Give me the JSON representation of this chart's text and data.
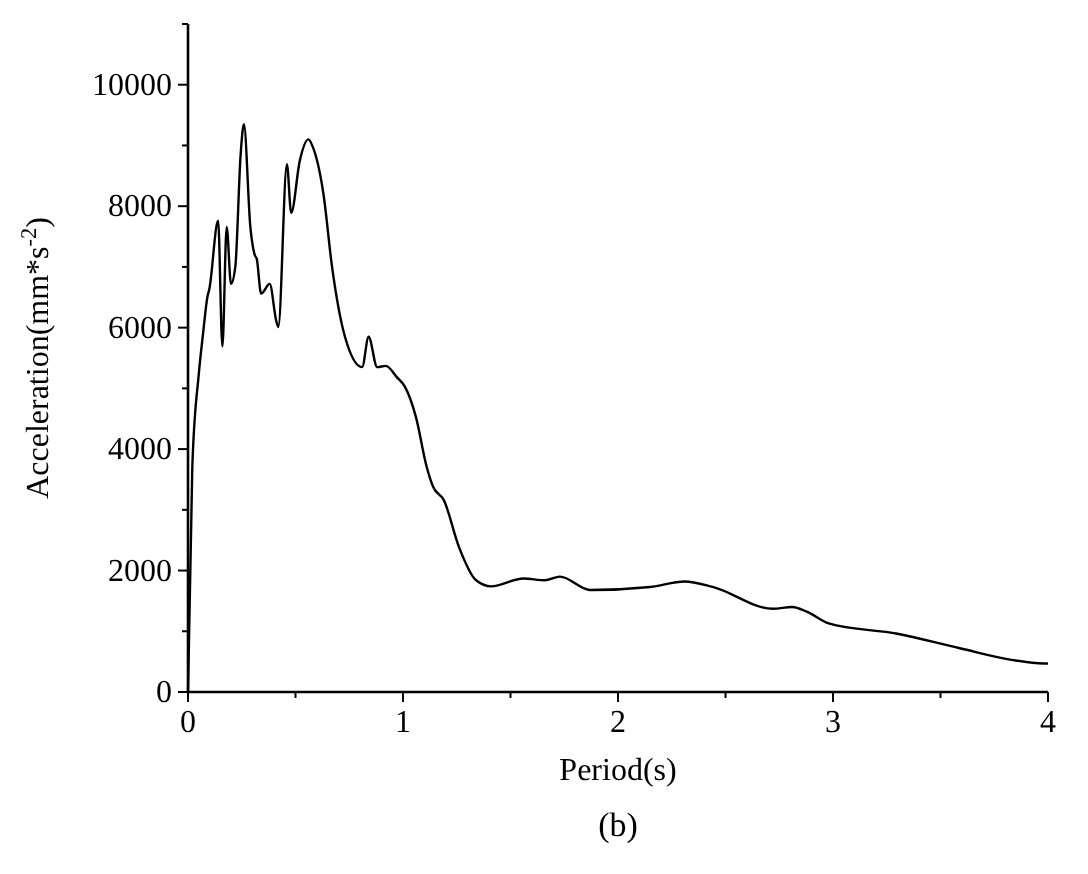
{
  "chart_data": {
    "type": "line",
    "xlabel": "Period(s)",
    "ylabel": "Acceleration(mm*s$^{-2}$)",
    "annotations": [
      "(b)"
    ],
    "xlim": [
      0,
      4
    ],
    "xticks": [
      0,
      {
        "value": 0.5,
        "label": null
      },
      1,
      {
        "value": 1.5,
        "label": null
      },
      2,
      {
        "value": 2.5,
        "label": null
      },
      3,
      {
        "value": 3.5,
        "label": null
      },
      4
    ],
    "ylim": [
      0,
      11000
    ],
    "yticks": [
      0,
      {
        "value": 1000,
        "label": null
      },
      2000,
      {
        "value": 3000,
        "label": null
      },
      4000,
      {
        "value": 5000,
        "label": null
      },
      6000,
      {
        "value": 7000,
        "label": null
      },
      8000,
      {
        "value": 9000,
        "label": null
      },
      10000,
      {
        "value": 11000,
        "label": null
      }
    ],
    "grid": false,
    "marker": "none",
    "line_style": "solid",
    "series": [
      {
        "color": "#000000",
        "x": [
          0,
          0.02,
          0.05,
          0.07,
          0.09,
          0.1,
          0.14,
          0.16,
          0.18,
          0.2,
          0.22,
          0.245,
          0.26,
          0.29,
          0.31,
          0.32,
          0.34,
          0.38,
          0.41,
          0.42,
          0.46,
          0.48,
          0.52,
          0.56,
          0.58,
          0.63,
          0.67,
          0.73,
          0.81,
          0.84,
          0.88,
          0.92,
          0.97,
          1.01,
          1.06,
          1.11,
          1.14,
          1.19,
          1.26,
          1.34,
          1.41,
          1.56,
          1.66,
          1.73,
          1.87,
          2.15,
          2.31,
          2.44,
          2.72,
          2.81,
          2.88,
          2.98,
          3.3,
          3.59,
          3.83,
          3.98,
          4
        ],
        "values": [
          0,
          3700,
          5230,
          5900,
          6500,
          6650,
          7760,
          5690,
          7660,
          6720,
          7000,
          8860,
          9350,
          7660,
          7200,
          7130,
          6560,
          6720,
          6120,
          6010,
          8690,
          7890,
          8750,
          9100,
          8980,
          8200,
          7000,
          5850,
          5350,
          5850,
          5350,
          5370,
          5190,
          5020,
          4530,
          3710,
          3380,
          3160,
          2390,
          1840,
          1740,
          1870,
          1840,
          1900,
          1680,
          1730,
          1820,
          1730,
          1370,
          1400,
          1320,
          1130,
          960,
          720,
          530,
          470,
          470
        ]
      }
    ]
  }
}
